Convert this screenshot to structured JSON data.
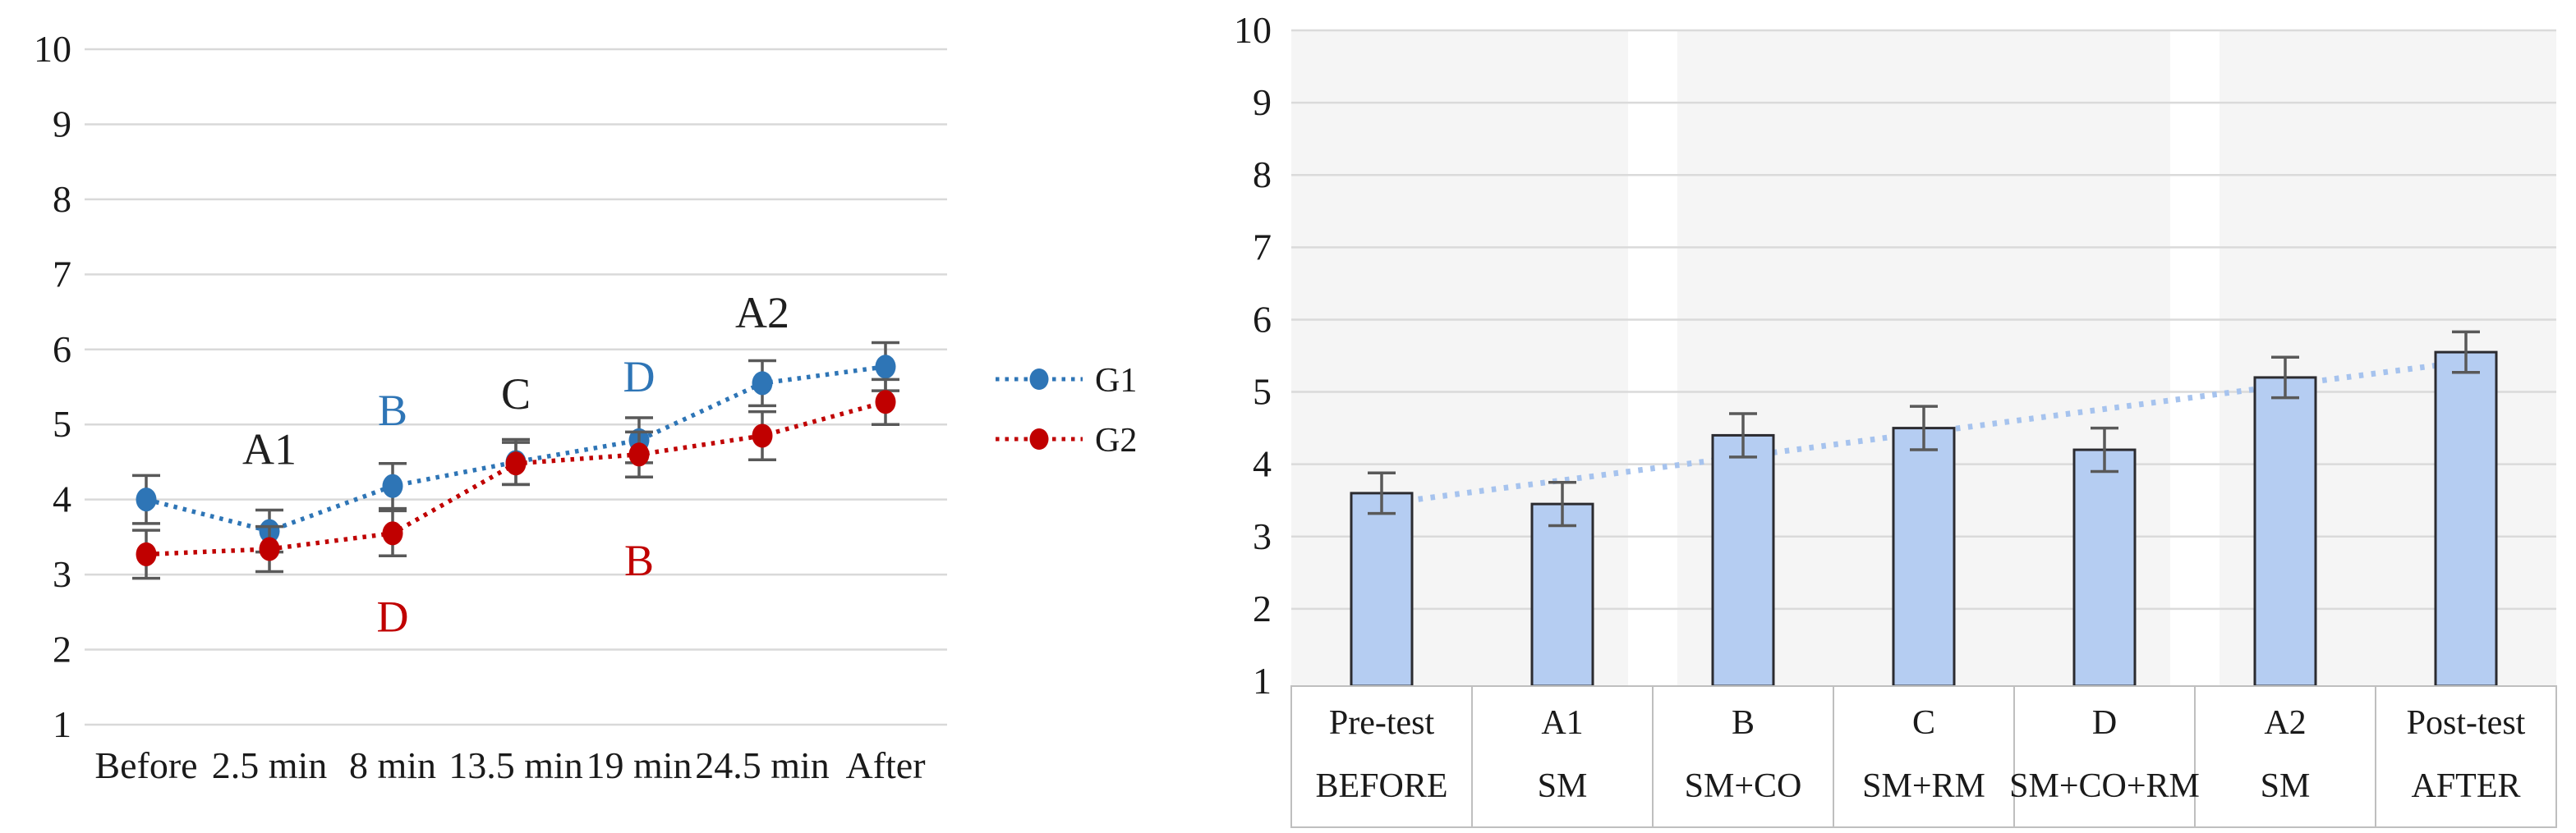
{
  "text_color": "#1a1a1a",
  "error_bar_color": "#595959",
  "chart_data": [
    {
      "id": "line-chart",
      "type": "line",
      "title": "",
      "categories": [
        "Before",
        "2.5 min",
        "8 min",
        "13.5 min",
        "19 min",
        "24.5 min",
        "After"
      ],
      "series": [
        {
          "name": "G1",
          "color": "#2E75B6",
          "values": [
            4.0,
            3.58,
            4.18,
            4.5,
            4.79,
            5.55,
            5.77
          ],
          "errors": [
            0.32,
            0.28,
            0.3,
            0.3,
            0.3,
            0.3,
            0.32
          ]
        },
        {
          "name": "G2",
          "color": "#C00000",
          "values": [
            3.27,
            3.34,
            3.55,
            4.48,
            4.6,
            4.85,
            5.3
          ],
          "errors": [
            0.32,
            0.3,
            0.3,
            0.28,
            0.3,
            0.32,
            0.3
          ]
        }
      ],
      "ylim": [
        1,
        10
      ],
      "yticks": [
        1,
        2,
        3,
        4,
        5,
        6,
        7,
        8,
        9,
        10
      ],
      "grid": true,
      "grid_color": "#D9D9D9",
      "line_style": "dotted",
      "marker": "circle",
      "legend_position": "right",
      "annotations": [
        {
          "text": "A1",
          "cat": 1,
          "value": 4.68,
          "color": "#1f1f1f"
        },
        {
          "text": "B",
          "cat": 2,
          "value": 5.2,
          "color": "#2E75B6"
        },
        {
          "text": "D",
          "cat": 2,
          "value": 2.45,
          "color": "#C00000"
        },
        {
          "text": "C",
          "cat": 3,
          "value": 5.42,
          "color": "#1f1f1f"
        },
        {
          "text": "D",
          "cat": 4,
          "value": 5.65,
          "color": "#2E75B6"
        },
        {
          "text": "B",
          "cat": 4,
          "value": 3.2,
          "color": "#C00000"
        },
        {
          "text": "A2",
          "cat": 5,
          "value": 6.5,
          "color": "#1f1f1f"
        }
      ]
    },
    {
      "id": "bar-chart",
      "type": "bar",
      "title": "",
      "categories": [
        "Pre-test",
        "A1",
        "B",
        "C",
        "D",
        "A2",
        "Post-test"
      ],
      "category_sublabels": [
        "BEFORE",
        "SM",
        "SM+CO",
        "SM+RM",
        "SM+CO+RM",
        "SM",
        "AFTER"
      ],
      "values": [
        3.6,
        3.45,
        4.4,
        4.5,
        4.2,
        5.2,
        5.55
      ],
      "errors": [
        0.28,
        0.3,
        0.3,
        0.3,
        0.3,
        0.28,
        0.28
      ],
      "ylim": [
        1,
        10
      ],
      "yticks": [
        1,
        2,
        3,
        4,
        5,
        6,
        7,
        8,
        9,
        10
      ],
      "grid": true,
      "grid_color": "#DADADA",
      "bar_color": "#B5CDF2",
      "bar_border_color": "#2B2B30",
      "band_color": "#F5F5F5",
      "band_gaps_after_category": [
        1,
        4
      ],
      "table_border_color": "#BFBFBF",
      "trendline": {
        "style": "dotted",
        "color": "#A6C3EE",
        "from": 3.45,
        "to": 5.42
      }
    }
  ]
}
